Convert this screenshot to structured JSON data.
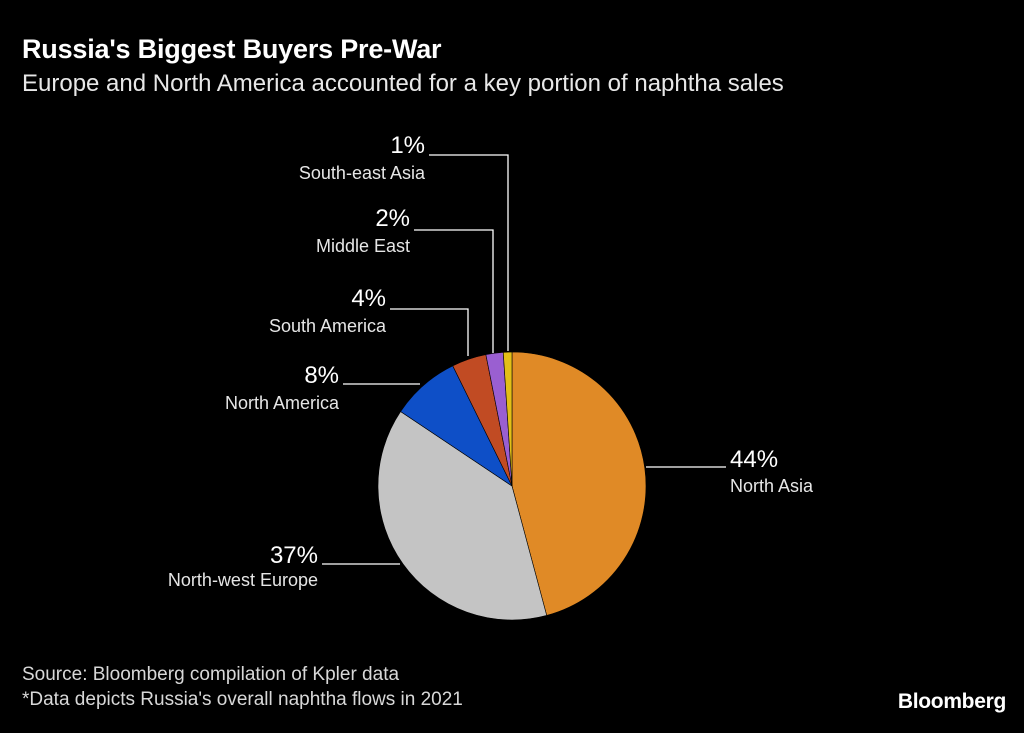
{
  "header": {
    "title": "Russia's Biggest Buyers Pre-War",
    "subtitle": "Europe and North America accounted for a key portion of naphtha sales"
  },
  "chart_data": {
    "type": "pie",
    "value_suffix": "%",
    "slices": [
      {
        "label": "North Asia",
        "value": 44,
        "color": "#e08a26"
      },
      {
        "label": "North-west Europe",
        "value": 37,
        "color": "#c4c4c4"
      },
      {
        "label": "North America",
        "value": 8,
        "color": "#0e4fc7"
      },
      {
        "label": "South America",
        "value": 4,
        "color": "#c14b23"
      },
      {
        "label": "Middle East",
        "value": 2,
        "color": "#9a5fd1"
      },
      {
        "label": "South-east Asia",
        "value": 1,
        "color": "#e3bf18"
      }
    ]
  },
  "footer": {
    "source": "Source: Bloomberg compilation of Kpler data",
    "note": "*Data depicts Russia's overall naphtha flows in 2021",
    "brand": "Bloomberg"
  }
}
